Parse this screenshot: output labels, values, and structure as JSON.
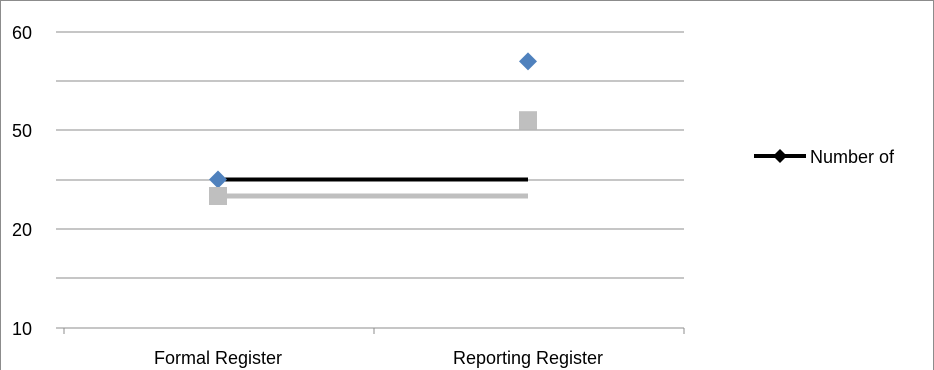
{
  "chart_data": {
    "type": "line",
    "categories": [
      "Formal Register",
      "Reporting Register"
    ],
    "y_tick_labels": [
      "10",
      "20",
      "50",
      "60"
    ],
    "ylim": [
      10,
      60
    ],
    "grid": true,
    "legend_placement": "right",
    "series": [
      {
        "name": "Number of",
        "values": [
          35,
          35
        ],
        "color": "#000000",
        "marker": "diamond",
        "marker_values": [
          35,
          57
        ],
        "marker_color": "#4f81bd",
        "in_legend": true
      },
      {
        "values": [
          30,
          30
        ],
        "color": "#bfbfbf",
        "marker": "square",
        "marker_values": [
          30,
          51
        ],
        "marker_color": "#bfbfbf",
        "in_legend": false
      }
    ]
  }
}
